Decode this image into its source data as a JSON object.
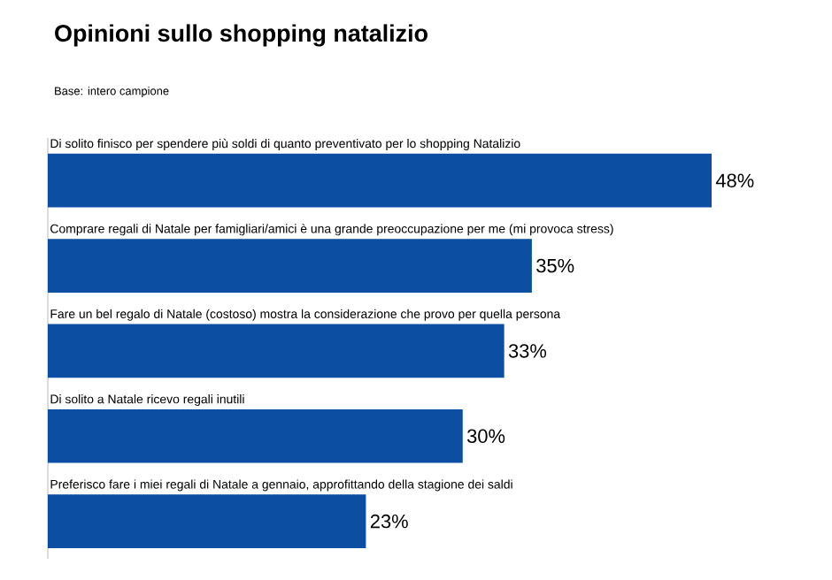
{
  "chart_data": {
    "type": "bar",
    "orientation": "horizontal",
    "title": "Opinioni sullo shopping natalizio",
    "subtitle": "Base: intero campione",
    "categories": [
      "Di solito finisco per spendere più soldi di quanto preventivato per lo shopping Natalizio",
      "Comprare regali di Natale per famigliari/amici è una grande preoccupazione per me (mi provoca stress)",
      "Fare un bel regalo di Natale (costoso) mostra la considerazione che provo per quella persona",
      "Di solito a Natale ricevo regali inutili",
      "Preferisco fare i miei regali di Natale a gennaio, approfittando della stagione dei saldi"
    ],
    "values": [
      48,
      35,
      33,
      30,
      23
    ],
    "value_labels": [
      "48%",
      "35%",
      "33%",
      "30%",
      "23%"
    ],
    "color": "#0b4ea2"
  }
}
